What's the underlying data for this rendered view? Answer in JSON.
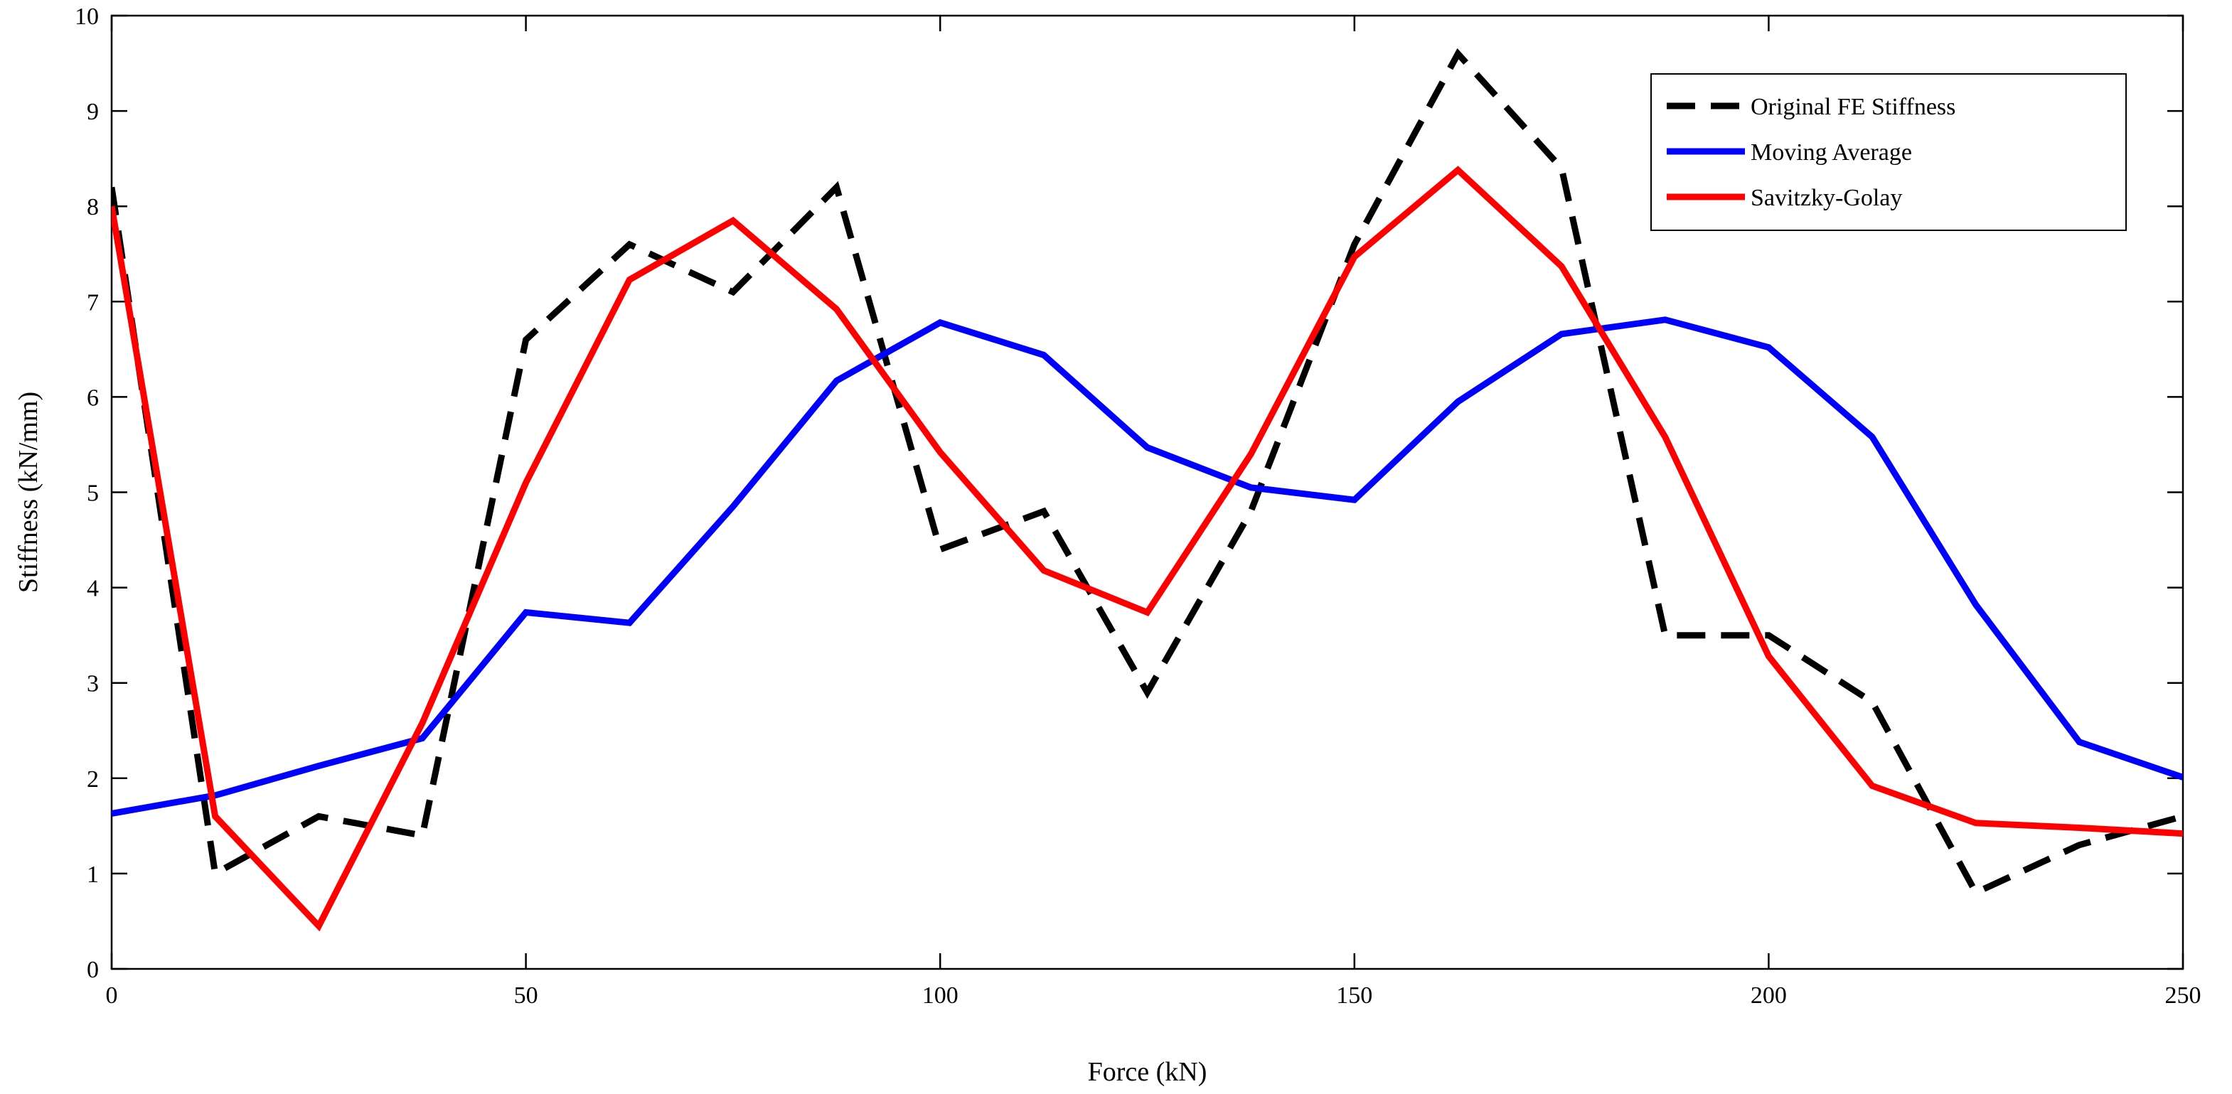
{
  "chart_data": {
    "type": "line",
    "title": "",
    "xlabel": "Force (kN)",
    "ylabel": "Stiffness (kN/mm)",
    "xlim": [
      0,
      250
    ],
    "ylim": [
      0,
      10
    ],
    "xticks": [
      0,
      50,
      100,
      150,
      200,
      250
    ],
    "yticks": [
      0,
      1,
      2,
      3,
      4,
      5,
      6,
      7,
      8,
      9,
      10
    ],
    "grid": false,
    "legend_position": "top-right",
    "series": [
      {
        "name": "Original FE Stiffness",
        "color": "#000000",
        "style": "dashed",
        "x": [
          0,
          12.5,
          25,
          37.5,
          50,
          62.5,
          75,
          87.5,
          100,
          112.5,
          125,
          137.5,
          150,
          162.5,
          175,
          187.5,
          200,
          212.5,
          225,
          237.5,
          250
        ],
        "y": [
          8.2,
          1.0,
          1.6,
          1.4,
          6.6,
          7.6,
          7.1,
          8.2,
          4.4,
          4.8,
          2.9,
          4.8,
          7.6,
          9.6,
          8.4,
          3.5,
          3.5,
          2.8,
          0.8,
          1.3,
          1.6
        ]
      },
      {
        "name": "Moving Average",
        "color": "#0000ff",
        "style": "solid",
        "x": [
          0,
          12.5,
          25,
          37.5,
          50,
          62.5,
          75,
          87.5,
          100,
          112.5,
          125,
          137.5,
          150,
          162.5,
          175,
          187.5,
          200,
          212.5,
          225,
          237.5,
          250
        ],
        "y": [
          1.63,
          1.82,
          2.13,
          2.42,
          3.74,
          3.63,
          4.85,
          6.17,
          6.78,
          6.44,
          5.47,
          5.05,
          4.92,
          5.95,
          6.66,
          6.81,
          6.52,
          5.58,
          3.82,
          2.38,
          2.01
        ]
      },
      {
        "name": "Savitzky-Golay",
        "color": "#ff0000",
        "style": "solid",
        "x": [
          0,
          12.5,
          25,
          37.5,
          50,
          62.5,
          75,
          87.5,
          100,
          112.5,
          125,
          137.5,
          150,
          162.5,
          175,
          187.5,
          200,
          212.5,
          225,
          237.5,
          250
        ],
        "y": [
          8.0,
          1.6,
          0.45,
          2.58,
          5.1,
          7.23,
          7.85,
          6.92,
          5.42,
          4.18,
          3.74,
          5.4,
          7.47,
          8.38,
          7.37,
          5.58,
          3.28,
          1.92,
          1.53,
          1.48,
          1.42
        ]
      }
    ]
  }
}
